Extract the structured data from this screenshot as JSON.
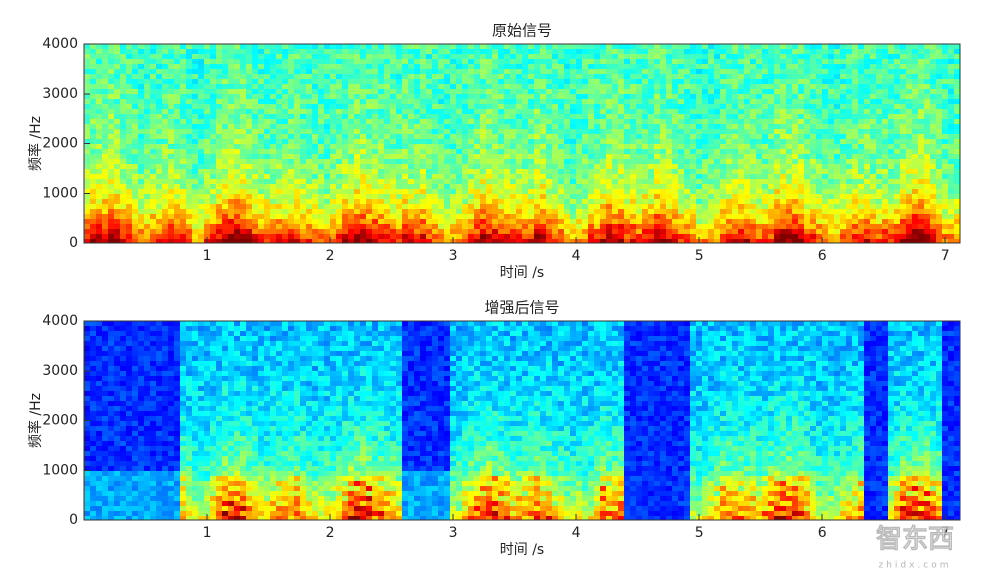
{
  "chart_data": [
    {
      "type": "spectrogram",
      "title": "原始信号",
      "xlabel": "时间 /s",
      "ylabel": "频率 /Hz",
      "xlim": [
        0,
        7.12
      ],
      "ylim": [
        0,
        4000
      ],
      "xticks": [
        1,
        2,
        3,
        4,
        5,
        6,
        7
      ],
      "yticks": [
        0,
        1000,
        2000,
        3000,
        4000
      ]
    },
    {
      "type": "spectrogram",
      "title": "增强后信号",
      "xlabel": "时间 /s",
      "ylabel": "频率 /Hz",
      "xlim": [
        0,
        7.12
      ],
      "ylim": [
        0,
        4000
      ],
      "xticks": [
        1,
        2,
        3,
        4,
        5,
        6,
        7
      ],
      "yticks": [
        0,
        1000,
        2000,
        3000,
        4000
      ]
    }
  ],
  "watermark": {
    "text": "智东西",
    "url": "zhidx.com"
  }
}
